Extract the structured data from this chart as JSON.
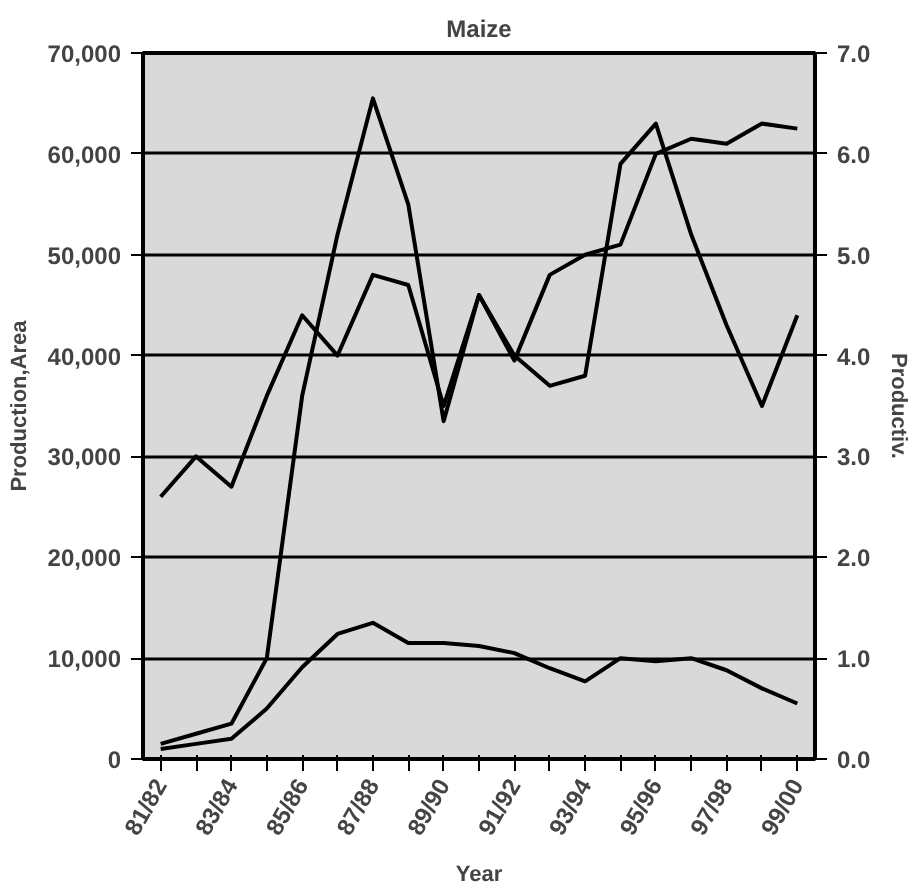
{
  "chart_data": {
    "type": "line",
    "title": "Maize",
    "xlabel": "Year",
    "ylabel": "Production,Area",
    "y2label": "Productiv.",
    "categories": [
      "81/82",
      null,
      "83/84",
      null,
      "85/86",
      null,
      "87/88",
      null,
      "89/90",
      null,
      "91/92",
      null,
      "93/94",
      null,
      "95/96",
      null,
      "97/98",
      null,
      "99/00"
    ],
    "series": [
      {
        "color": "#000000",
        "values": [
          1500,
          2500,
          3500,
          10000,
          36000,
          52000,
          65500,
          55000,
          33500,
          46000,
          39500,
          48000,
          50000,
          51000,
          60000,
          61500,
          61000,
          63000,
          62500
        ]
      },
      {
        "color": "#000000",
        "values": [
          1000,
          1500,
          2000,
          5000,
          9100,
          12400,
          13500,
          11500,
          11500,
          11200,
          10500,
          9000,
          7700,
          10000,
          9700,
          10000,
          8800,
          7000,
          5500
        ]
      },
      {
        "color": "#000000",
        "axis": "y2",
        "values": [
          2.6,
          3.0,
          2.7,
          3.6,
          4.4,
          4.0,
          4.8,
          4.7,
          3.5,
          4.6,
          4.0,
          3.7,
          3.8,
          5.9,
          6.3,
          5.2,
          4.3,
          3.5,
          4.4
        ]
      }
    ],
    "ylim": [
      0,
      70000
    ],
    "yticks": [
      0,
      {
        "value": 10000,
        "label": "10,000"
      },
      {
        "value": 20000,
        "label": "20,000"
      },
      {
        "value": 30000,
        "label": "30,000"
      },
      {
        "value": 40000,
        "label": "40,000"
      },
      {
        "value": 50000,
        "label": "50,000"
      },
      {
        "value": 60000,
        "label": "60,000"
      },
      {
        "value": 70000,
        "label": "70,000"
      }
    ],
    "y2lim": [
      0,
      7
    ],
    "y2ticks": [
      {
        "value": 0,
        "label": "0.0"
      },
      {
        "value": 1,
        "label": "1.0"
      },
      {
        "value": 2,
        "label": "2.0"
      },
      {
        "value": 3,
        "label": "3.0"
      },
      {
        "value": 4,
        "label": "4.0"
      },
      {
        "value": 5,
        "label": "5.0"
      },
      {
        "value": 6,
        "label": "6.0"
      },
      {
        "value": 7,
        "label": "7.0"
      }
    ],
    "grid": "y",
    "marker": "none",
    "line_style": "solid"
  }
}
